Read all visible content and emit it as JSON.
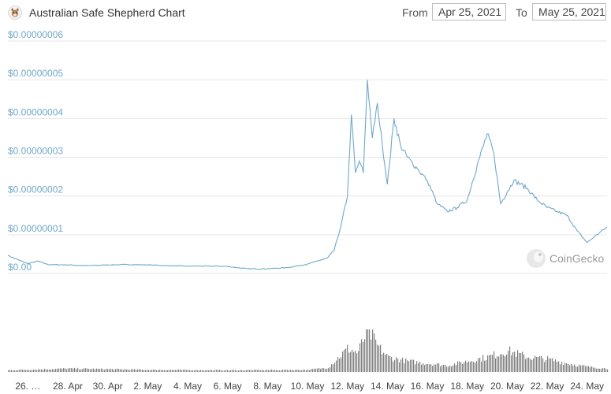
{
  "header": {
    "title": "Australian Safe Shepherd Chart",
    "from_label": "From",
    "from_value": "Apr 25, 2021",
    "to_label": "To",
    "to_value": "May 25, 2021"
  },
  "watermark": {
    "text": "CoinGecko",
    "icon": "gecko-logo-icon"
  },
  "colors": {
    "price_line": "#6fa8c9",
    "volume_bar": "#7f7f7f",
    "grid": "#e6e6e6",
    "y_label": "#6fa8c9"
  },
  "chart_data": {
    "type": "line",
    "title": "Australian Safe Shepherd Chart",
    "x_range": [
      "2021-04-25",
      "2021-05-25"
    ],
    "ylim": [
      0,
      6e-08
    ],
    "y_ticks": [
      "$0.00",
      "$0.00000001",
      "$0.00000002",
      "$0.00000003",
      "$0.00000004",
      "$0.00000005",
      "$0.00000006"
    ],
    "x_ticks": [
      "26. …",
      "28. Apr",
      "30. Apr",
      "2. May",
      "4. May",
      "6. May",
      "8. May",
      "10. May",
      "12. May",
      "14. May",
      "16. May",
      "18. May",
      "20. May",
      "22. May",
      "24. May"
    ],
    "grid": true,
    "series": [
      {
        "x": [
          "2021-04-25",
          "2021-04-26",
          "2021-04-26",
          "2021-04-27",
          "2021-04-28",
          "2021-04-29",
          "2021-04-30",
          "2021-05-01",
          "2021-05-02",
          "2021-05-03",
          "2021-05-04",
          "2021-05-05",
          "2021-05-06",
          "2021-05-07",
          "2021-05-08",
          "2021-05-09",
          "2021-05-10",
          "2021-05-11",
          "2021-05-11",
          "2021-05-11",
          "2021-05-12",
          "2021-05-12",
          "2021-05-12",
          "2021-05-12",
          "2021-05-12",
          "2021-05-13",
          "2021-05-13",
          "2021-05-13",
          "2021-05-13",
          "2021-05-14",
          "2021-05-14",
          "2021-05-14",
          "2021-05-15",
          "2021-05-15",
          "2021-05-16",
          "2021-05-16",
          "2021-05-17",
          "2021-05-17",
          "2021-05-18",
          "2021-05-18",
          "2021-05-19",
          "2021-05-19",
          "2021-05-19",
          "2021-05-20",
          "2021-05-20",
          "2021-05-20",
          "2021-05-21",
          "2021-05-21",
          "2021-05-22",
          "2021-05-22",
          "2021-05-23",
          "2021-05-23",
          "2021-05-24",
          "2021-05-24",
          "2021-05-25"
        ],
        "y": [
          4.6e-09,
          2.5e-09,
          3.2e-09,
          2.3e-09,
          2.2e-09,
          2e-09,
          2.2e-09,
          2.3e-09,
          2.2e-09,
          2e-09,
          1.9e-09,
          1.9e-09,
          1.8e-09,
          1.2e-09,
          1.2e-09,
          1.5e-09,
          2.4e-09,
          4e-09,
          6e-09,
          1.2e-08,
          2e-08,
          4.1e-08,
          2.6e-08,
          2.9e-08,
          2.6e-08,
          5e-08,
          3.5e-08,
          4.4e-08,
          3.3e-08,
          2.3e-08,
          4e-08,
          3.3e-08,
          3e-08,
          2.7e-08,
          2.4e-08,
          1.8e-08,
          1.6e-08,
          1.7e-08,
          1.9e-08,
          2.8e-08,
          3.6e-08,
          3.1e-08,
          1.8e-08,
          2.1e-08,
          2.4e-08,
          2.3e-08,
          2.2e-08,
          1.9e-08,
          1.7e-08,
          1.6e-08,
          1.5e-08,
          1.1e-08,
          8e-09,
          1e-08,
          1.2e-08
        ]
      }
    ],
    "volume": {
      "x": [
        "2021-04-25",
        "2021-04-28",
        "2021-05-02",
        "2021-05-06",
        "2021-05-10",
        "2021-05-11",
        "2021-05-12",
        "2021-05-12",
        "2021-05-13",
        "2021-05-13",
        "2021-05-14",
        "2021-05-15",
        "2021-05-16",
        "2021-05-17",
        "2021-05-18",
        "2021-05-19",
        "2021-05-20",
        "2021-05-21",
        "2021-05-22",
        "2021-05-23",
        "2021-05-24",
        "2021-05-25"
      ],
      "values": [
        0.04,
        0.08,
        0.05,
        0.04,
        0.05,
        0.1,
        0.55,
        0.45,
        1.0,
        0.6,
        0.35,
        0.25,
        0.2,
        0.15,
        0.25,
        0.35,
        0.5,
        0.35,
        0.3,
        0.2,
        0.12,
        0.08
      ]
    }
  }
}
